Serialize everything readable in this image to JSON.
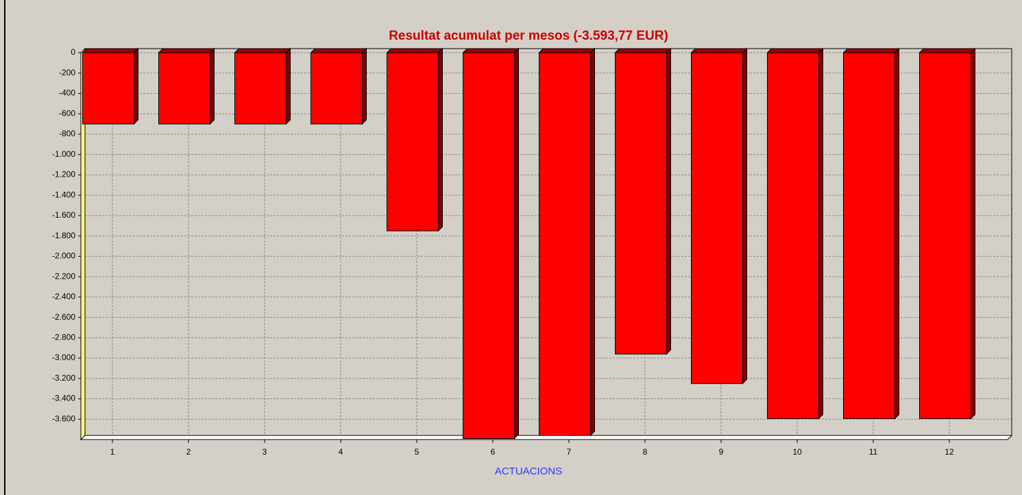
{
  "chart_data": {
    "type": "bar3d",
    "title": "Resultat acumulat per mesos (-3.593,77 EUR)",
    "x_label": "ACTUACIONS",
    "categories": [
      "1",
      "2",
      "3",
      "4",
      "5",
      "6",
      "7",
      "8",
      "9",
      "10",
      "11",
      "12"
    ],
    "values": [
      -700,
      -700,
      -700,
      -700,
      -1750,
      -3790,
      -3760,
      -2960,
      -3250,
      -3594,
      -3594,
      -3594
    ],
    "color": "#ff0000",
    "ylim": [
      -3800,
      0
    ],
    "yticks": [
      0,
      -200,
      -400,
      -600,
      -800,
      {
        "value": -1000,
        "label": "-1.000"
      },
      {
        "value": -1200,
        "label": "-1.200"
      },
      {
        "value": -1400,
        "label": "-1.400"
      },
      {
        "value": -1600,
        "label": "-1.600"
      },
      {
        "value": -1800,
        "label": "-1.800"
      },
      {
        "value": -2000,
        "label": "-2.000"
      },
      {
        "value": -2200,
        "label": "-2.200"
      },
      {
        "value": -2400,
        "label": "-2.400"
      },
      {
        "value": -2600,
        "label": "-2.600"
      },
      {
        "value": -2800,
        "label": "-2.800"
      },
      {
        "value": -3000,
        "label": "-3.000"
      },
      {
        "value": -3200,
        "label": "-3.200"
      },
      {
        "value": -3400,
        "label": "-3.400"
      },
      {
        "value": -3600,
        "label": "-3.600"
      }
    ],
    "grid": true
  }
}
